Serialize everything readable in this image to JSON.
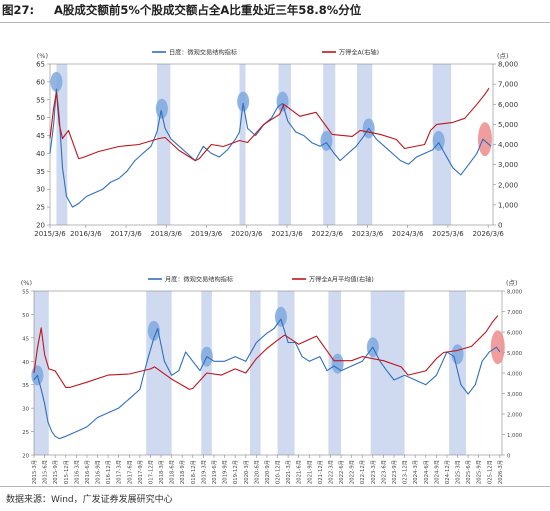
{
  "figure": {
    "label": "图27:",
    "title": "A股成交额前5%个股成交额占全A比重处近三年58.8%分位",
    "source": "数据来源：Wind，广发证券发展研究中心"
  },
  "colors": {
    "structure_series": "#2e6fbf",
    "index_series": "#c0141b",
    "shade": "#cfdaf1",
    "highlight_blue": "#7fa8df",
    "highlight_red": "#f08c8c"
  },
  "chart_data": [
    {
      "id": "daily",
      "type": "line",
      "title": "",
      "left_unit": "(%)",
      "right_unit": "(点)",
      "ylim": [
        20,
        65
      ],
      "yticks": [
        20,
        25,
        30,
        35,
        40,
        45,
        50,
        55,
        60,
        65
      ],
      "y2lim": [
        0,
        8000
      ],
      "y2ticks": [
        0,
        1000,
        2000,
        3000,
        4000,
        5000,
        6000,
        7000,
        8000
      ],
      "xlim": [
        2015.29,
        2026.3
      ],
      "xticks": [
        2015.29,
        2016.18,
        2017.18,
        2018.18,
        2019.18,
        2020.18,
        2021.18,
        2022.18,
        2023.18,
        2024.18,
        2025.18,
        2026.18
      ],
      "xtick_labels": [
        "2015/3/6",
        "2016/3/6",
        "2017/3/6",
        "2018/3/6",
        "2019/3/6",
        "2020/3/6",
        "2021/3/6",
        "2022/3/6",
        "2023/3/6",
        "2024/3/6",
        "2025/3/6",
        "2026/3/6"
      ],
      "grid": false,
      "legend_position": "top",
      "shaded_periods": [
        [
          2015.45,
          2015.72
        ],
        [
          2017.95,
          2018.28
        ],
        [
          2020.0,
          2020.15
        ],
        [
          2020.97,
          2021.28
        ],
        [
          2022.08,
          2022.38
        ],
        [
          2022.92,
          2023.3
        ],
        [
          2024.8,
          2025.26
        ]
      ],
      "highlights": [
        {
          "x": 2015.45,
          "y": 60,
          "color": "blue"
        },
        {
          "x": 2018.07,
          "y": 52.5,
          "color": "blue"
        },
        {
          "x": 2020.09,
          "y": 54.5,
          "color": "blue"
        },
        {
          "x": 2021.07,
          "y": 54.5,
          "color": "blue"
        },
        {
          "x": 2022.16,
          "y": 43.5,
          "color": "blue"
        },
        {
          "x": 2023.21,
          "y": 47,
          "color": "blue"
        },
        {
          "x": 2024.95,
          "y": 43.5,
          "color": "blue"
        },
        {
          "x": 2026.1,
          "y": 44,
          "color": "red"
        }
      ],
      "series": [
        {
          "name": "日度：微观交易结构指标",
          "axis": "left",
          "x": [
            2015.29,
            2015.38,
            2015.45,
            2015.52,
            2015.6,
            2015.7,
            2015.85,
            2016.0,
            2016.2,
            2016.4,
            2016.6,
            2016.8,
            2017.0,
            2017.2,
            2017.4,
            2017.6,
            2017.8,
            2017.95,
            2018.05,
            2018.15,
            2018.3,
            2018.5,
            2018.7,
            2018.9,
            2019.1,
            2019.3,
            2019.5,
            2019.7,
            2019.9,
            2020.0,
            2020.09,
            2020.2,
            2020.4,
            2020.6,
            2020.8,
            2020.95,
            2021.07,
            2021.2,
            2021.4,
            2021.6,
            2021.8,
            2022.0,
            2022.16,
            2022.35,
            2022.5,
            2022.7,
            2022.9,
            2023.1,
            2023.21,
            2023.4,
            2023.6,
            2023.8,
            2024.0,
            2024.2,
            2024.4,
            2024.6,
            2024.8,
            2024.95,
            2025.1,
            2025.3,
            2025.5,
            2025.7,
            2025.9,
            2026.05,
            2026.15,
            2026.25
          ],
          "values": [
            40,
            48,
            58,
            50,
            36,
            28,
            25,
            26,
            28,
            29,
            30,
            32,
            33,
            35,
            38,
            40,
            42,
            46,
            52,
            47,
            44,
            42,
            40,
            38,
            42,
            40,
            39,
            41,
            44,
            46,
            54,
            47,
            45,
            48,
            50,
            53,
            54,
            49,
            46,
            45,
            43,
            42,
            43,
            40,
            38,
            40,
            42,
            45,
            47,
            44,
            42,
            40,
            38,
            37,
            39,
            40,
            41,
            43,
            40,
            36,
            34,
            37,
            40,
            44,
            43,
            42
          ]
        },
        {
          "name": "万得全A(右轴)",
          "axis": "right",
          "x": [
            2015.29,
            2015.38,
            2015.45,
            2015.52,
            2015.6,
            2015.75,
            2016.0,
            2016.1,
            2016.5,
            2017.0,
            2017.5,
            2018.0,
            2018.15,
            2018.5,
            2018.9,
            2019.0,
            2019.3,
            2019.6,
            2020.0,
            2020.2,
            2020.6,
            2021.0,
            2021.1,
            2021.5,
            2021.9,
            2022.3,
            2022.8,
            2023.0,
            2023.5,
            2023.9,
            2024.1,
            2024.6,
            2024.75,
            2024.9,
            2025.3,
            2025.6,
            2025.9,
            2026.1,
            2026.2
          ],
          "values": [
            4300,
            5800,
            6600,
            5000,
            4300,
            4700,
            3300,
            3350,
            3650,
            3900,
            4000,
            4300,
            4350,
            3700,
            3200,
            3300,
            4000,
            3900,
            4200,
            4100,
            5000,
            5500,
            6000,
            5400,
            5600,
            4500,
            4400,
            4700,
            4500,
            4250,
            3800,
            4000,
            4700,
            5000,
            5100,
            5300,
            6000,
            6500,
            6800
          ]
        }
      ]
    },
    {
      "id": "monthly",
      "type": "line",
      "title": "",
      "left_unit": "(%)",
      "right_unit": "(点)",
      "ylim": [
        20,
        55
      ],
      "yticks": [
        20,
        25,
        30,
        35,
        40,
        45,
        50,
        55
      ],
      "y2lim": [
        0,
        8000
      ],
      "y2ticks": [
        0,
        1000,
        2000,
        3000,
        4000,
        5000,
        6000,
        7000,
        8000
      ],
      "xlim": [
        2015.25,
        2026.3
      ],
      "xticks": [
        2015.25,
        2015.5,
        2015.75,
        2016.0,
        2016.25,
        2016.5,
        2016.75,
        2017.0,
        2017.25,
        2017.5,
        2017.75,
        2018.0,
        2018.25,
        2018.5,
        2018.75,
        2019.0,
        2019.25,
        2019.5,
        2019.75,
        2020.0,
        2020.25,
        2020.5,
        2020.75,
        2021.0,
        2021.25,
        2021.5,
        2021.75,
        2022.0,
        2022.25,
        2022.5,
        2022.75,
        2023.0,
        2023.25,
        2023.5,
        2023.75,
        2024.0,
        2024.25,
        2024.5,
        2024.75,
        2025.0,
        2025.25,
        2025.5,
        2025.75,
        2026.0,
        2026.25
      ],
      "xtick_labels": [
        "2015-3月",
        "2015-6月",
        "2015-9月",
        "2015-12月",
        "2016-3月",
        "2016-6月",
        "2016-9月",
        "2016-12月",
        "2017-3月",
        "2017-6月",
        "2017-9月",
        "2017-12月",
        "2018-3月",
        "2018-6月",
        "2018-9月",
        "2018-12月",
        "2019-3月",
        "2019-6月",
        "2019-9月",
        "2019-12月",
        "2020-3月",
        "2020-6月",
        "2020-9月",
        "2020-12月",
        "2021-3月",
        "2021-6月",
        "2021-9月",
        "2021-12月",
        "2022-3月",
        "2022-6月",
        "2022-9月",
        "2022-12月",
        "2023-3月",
        "2023-6月",
        "2023-9月",
        "2023-12月",
        "2024-3月",
        "2024-6月",
        "2024-9月",
        "2024-12月",
        "2025-3月",
        "2025-6月",
        "2025-9月",
        "2025-12月",
        "2026-3月"
      ],
      "grid": false,
      "legend_position": "top",
      "shaded_periods": [
        [
          2015.25,
          2015.6
        ],
        [
          2017.9,
          2018.5
        ],
        [
          2019.2,
          2019.45
        ],
        [
          2020.35,
          2020.6
        ],
        [
          2021.0,
          2021.4
        ],
        [
          2022.2,
          2022.5
        ],
        [
          2023.2,
          2024.0
        ],
        [
          2025.05,
          2025.45
        ]
      ],
      "highlights": [
        {
          "x": 2015.33,
          "y": 37,
          "color": "blue"
        },
        {
          "x": 2018.08,
          "y": 46.5,
          "color": "blue"
        },
        {
          "x": 2019.33,
          "y": 41,
          "color": "blue"
        },
        {
          "x": 2021.08,
          "y": 49.5,
          "color": "blue"
        },
        {
          "x": 2022.42,
          "y": 39.5,
          "color": "blue"
        },
        {
          "x": 2023.25,
          "y": 43,
          "color": "blue"
        },
        {
          "x": 2025.25,
          "y": 41.5,
          "color": "blue"
        },
        {
          "x": 2026.2,
          "y": 43,
          "color": "red"
        }
      ],
      "series": [
        {
          "name": "月度：微观交易结构指标",
          "axis": "left",
          "x": [
            2015.25,
            2015.33,
            2015.42,
            2015.5,
            2015.58,
            2015.67,
            2015.75,
            2015.85,
            2016.0,
            2016.25,
            2016.5,
            2016.75,
            2017.0,
            2017.25,
            2017.5,
            2017.75,
            2017.92,
            2018.08,
            2018.17,
            2018.33,
            2018.5,
            2018.67,
            2018.83,
            2019.0,
            2019.17,
            2019.33,
            2019.5,
            2019.75,
            2020.0,
            2020.25,
            2020.5,
            2020.75,
            2020.92,
            2021.08,
            2021.25,
            2021.42,
            2021.58,
            2021.75,
            2022.0,
            2022.17,
            2022.33,
            2022.5,
            2022.75,
            2023.0,
            2023.25,
            2023.42,
            2023.58,
            2023.75,
            2024.0,
            2024.25,
            2024.5,
            2024.75,
            2025.0,
            2025.17,
            2025.33,
            2025.5,
            2025.67,
            2025.83,
            2026.0,
            2026.17,
            2026.25
          ],
          "values": [
            36,
            37,
            34,
            31,
            27,
            25,
            24,
            23.5,
            24,
            25,
            26,
            28,
            29,
            30,
            32,
            34,
            40,
            45,
            47,
            40,
            37,
            38,
            42,
            40,
            38,
            41,
            40,
            40,
            41,
            40,
            44,
            46,
            47,
            49,
            44,
            44,
            41,
            40,
            41,
            38,
            39,
            38,
            39,
            40,
            43,
            40,
            38,
            36,
            37,
            36,
            35,
            37,
            42,
            41,
            35,
            33,
            35,
            40,
            42,
            43,
            42
          ]
        },
        {
          "name": "万得全A月平均值(右轴)",
          "axis": "right",
          "x": [
            2015.25,
            2015.33,
            2015.42,
            2015.5,
            2015.6,
            2015.75,
            2016.0,
            2016.1,
            2016.5,
            2017.0,
            2017.5,
            2018.0,
            2018.1,
            2018.5,
            2018.92,
            2019.0,
            2019.33,
            2019.67,
            2020.0,
            2020.25,
            2020.5,
            2020.75,
            2021.0,
            2021.17,
            2021.5,
            2021.92,
            2022.33,
            2022.75,
            2023.0,
            2023.5,
            2023.92,
            2024.08,
            2024.5,
            2024.75,
            2024.92,
            2025.25,
            2025.58,
            2025.92,
            2026.08,
            2026.2
          ],
          "values": [
            4000,
            5200,
            6200,
            4900,
            4200,
            4100,
            3300,
            3300,
            3550,
            3900,
            3950,
            4200,
            4300,
            3700,
            3200,
            3250,
            4000,
            3900,
            4200,
            4000,
            4700,
            5200,
            5600,
            5850,
            5400,
            5800,
            4600,
            4600,
            4800,
            4600,
            4300,
            3900,
            4100,
            4700,
            5000,
            5100,
            5300,
            6000,
            6500,
            6800
          ]
        }
      ]
    }
  ]
}
